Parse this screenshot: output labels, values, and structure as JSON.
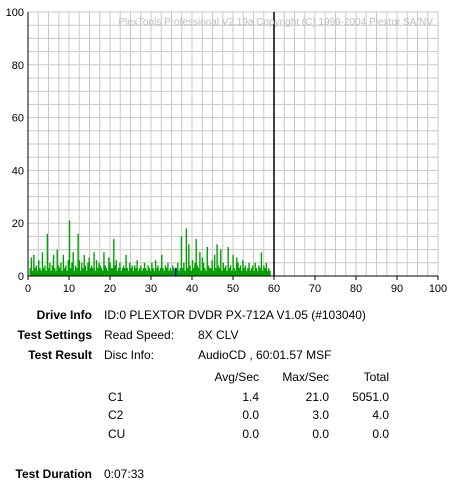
{
  "watermark": "PlexTools Professional V2.19a Copyright (C) 1999-2004 Plextor SA/NV",
  "chart_data": {
    "type": "bar",
    "xlim": [
      0,
      100
    ],
    "ylim": [
      0,
      100
    ],
    "x_ticks": [
      0,
      10,
      20,
      30,
      40,
      50,
      60,
      70,
      80,
      90,
      100
    ],
    "y_ticks": [
      0,
      20,
      40,
      60,
      80,
      100
    ],
    "grid": true,
    "marker_x": 60,
    "colors": {
      "series": "#00a000",
      "grid": "#c8c8c8",
      "marker": "#000000",
      "cu": "#0000cc"
    },
    "series": [
      {
        "x_start": 0.5,
        "x_step": 0.3,
        "values": [
          3,
          7,
          2,
          8,
          3,
          4,
          2,
          6,
          3,
          2,
          9,
          3,
          4,
          2,
          16,
          3,
          5,
          2,
          4,
          8,
          3,
          2,
          10,
          4,
          3,
          5,
          2,
          8,
          3,
          4,
          2,
          6,
          21,
          3,
          5,
          9,
          2,
          4,
          3,
          16,
          6,
          2,
          5,
          3,
          8,
          4,
          2,
          5,
          7,
          3,
          4,
          3,
          9,
          2,
          6,
          3,
          5,
          4,
          3,
          2,
          9,
          4,
          3,
          2,
          7,
          5,
          3,
          3,
          14,
          4,
          6,
          2,
          3,
          5,
          2,
          3,
          4,
          3,
          8,
          3,
          2,
          5,
          3,
          4,
          2,
          4,
          3,
          6,
          2,
          3,
          4,
          2,
          3,
          5,
          3,
          2,
          4,
          3,
          2,
          5,
          3,
          2,
          6,
          3,
          4,
          2,
          3,
          8,
          3,
          2,
          4,
          3,
          5,
          2,
          3,
          2,
          4,
          3,
          2,
          3,
          5,
          2,
          3,
          15,
          3,
          5,
          2,
          18,
          3,
          12,
          4,
          2,
          6,
          3,
          5,
          14,
          4,
          3,
          9,
          2,
          7,
          5,
          3,
          2,
          11,
          4,
          3,
          3,
          6,
          2,
          8,
          3,
          12,
          4,
          3,
          10,
          2,
          5,
          3,
          4,
          2,
          11,
          3,
          4,
          2,
          8,
          3,
          2,
          7,
          5,
          3,
          4,
          2,
          6,
          3,
          4,
          2,
          3,
          5,
          2,
          3,
          4,
          2,
          5,
          3,
          2,
          4,
          3,
          9,
          2,
          4,
          3,
          5,
          2,
          3,
          2
        ]
      }
    ]
  },
  "info": {
    "drive_info_label": "Drive Info",
    "drive_info_value": "ID:0 PLEXTOR DVDR PX-712A V1.05 (#103040)",
    "test_settings_label": "Test Settings",
    "read_speed_label": "Read Speed:",
    "read_speed_value": "8X CLV",
    "test_result_label": "Test Result",
    "disc_info_label": "Disc Info:",
    "disc_info_value": "AudioCD , 60:01.57 MSF",
    "test_duration_label": "Test Duration",
    "test_duration_value": "0:07:33"
  },
  "results": {
    "headers": [
      "Avg/Sec",
      "Max/Sec",
      "Total"
    ],
    "rows": [
      {
        "name": "C1",
        "avg": "1.4",
        "max": "21.0",
        "total": "5051.0"
      },
      {
        "name": "C2",
        "avg": "0.0",
        "max": "3.0",
        "total": "4.0"
      },
      {
        "name": "CU",
        "avg": "0.0",
        "max": "0.0",
        "total": "0.0"
      }
    ]
  }
}
